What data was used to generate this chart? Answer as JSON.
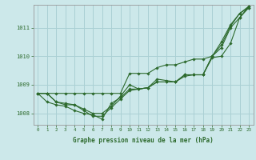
{
  "title": "Graphe pression niveau de la mer (hPa)",
  "bg_color": "#cce8ea",
  "grid_color": "#aad0d4",
  "line_color": "#2d6a2d",
  "marker_color": "#2d6a2d",
  "xlim": [
    -0.5,
    23.5
  ],
  "ylim": [
    1007.6,
    1011.8
  ],
  "yticks": [
    1008,
    1009,
    1010,
    1011
  ],
  "xticks": [
    0,
    1,
    2,
    3,
    4,
    5,
    6,
    7,
    8,
    9,
    10,
    11,
    12,
    13,
    14,
    15,
    16,
    17,
    18,
    19,
    20,
    21,
    22,
    23
  ],
  "series": [
    [
      1008.7,
      1008.7,
      1008.4,
      1008.3,
      1008.3,
      1008.1,
      1007.9,
      1007.9,
      1008.2,
      1008.5,
      1008.8,
      1008.85,
      1008.9,
      1009.1,
      1009.1,
      1009.1,
      1009.35,
      1009.35,
      1009.35,
      1010.0,
      1010.4,
      1011.05,
      1011.5,
      1011.75
    ],
    [
      1008.7,
      1008.7,
      1008.4,
      1008.35,
      1008.3,
      1008.15,
      1008.0,
      1008.0,
      1008.25,
      1008.6,
      1009.0,
      1008.85,
      1008.9,
      1009.2,
      1009.15,
      1009.1,
      1009.35,
      1009.35,
      1009.35,
      1010.0,
      1010.3,
      1011.0,
      1011.35,
      1011.7
    ],
    [
      1008.7,
      1008.4,
      1008.3,
      1008.25,
      1008.1,
      1008.0,
      1007.95,
      1007.8,
      1008.35,
      1008.55,
      1008.85,
      1008.85,
      1008.9,
      1009.1,
      1009.1,
      1009.1,
      1009.3,
      1009.35,
      1009.35,
      1009.95,
      1010.0,
      1010.45,
      1011.35,
      1011.75
    ],
    [
      1008.7,
      1008.7,
      1008.7,
      1008.7,
      1008.7,
      1008.7,
      1008.7,
      1008.7,
      1008.7,
      1008.7,
      1009.4,
      1009.4,
      1009.4,
      1009.6,
      1009.7,
      1009.7,
      1009.8,
      1009.9,
      1009.9,
      1010.0,
      1010.5,
      1011.1,
      1011.5,
      1011.7
    ]
  ]
}
